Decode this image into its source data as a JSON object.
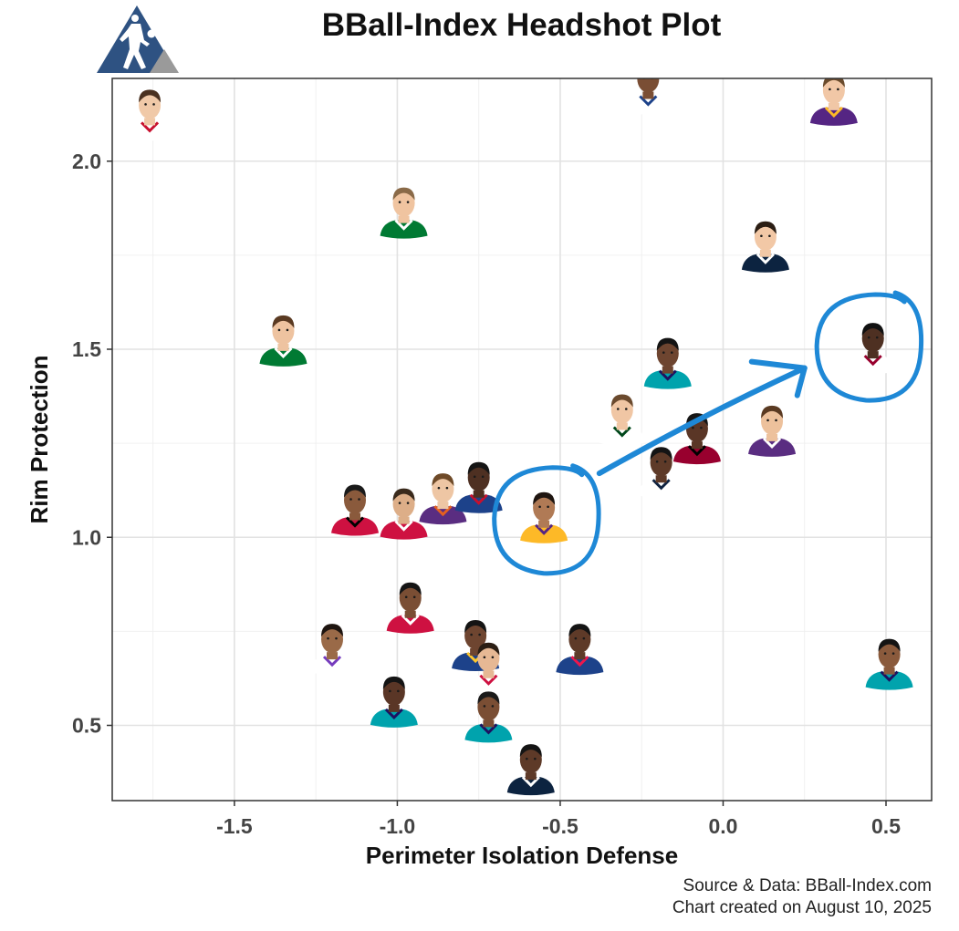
{
  "chart_data": {
    "type": "scatter",
    "title": "BBall-Index Headshot Plot",
    "xlabel": "Perimeter Isolation Defense",
    "ylabel": "Rim Protection",
    "xlim": [
      -1.875,
      0.64
    ],
    "ylim": [
      0.3,
      2.22
    ],
    "x_ticks": [
      -1.5,
      -1.0,
      -0.5,
      0.0,
      0.5
    ],
    "x_tick_labels": [
      "-1.5",
      "-1.0",
      "-0.5",
      "0.0",
      "0.5"
    ],
    "y_ticks": [
      0.5,
      1.0,
      1.5,
      2.0
    ],
    "y_tick_labels": [
      "0.5",
      "1.0",
      "1.5",
      "2.0"
    ],
    "grid": true,
    "marker": "player-headshot",
    "points": [
      {
        "x": -1.76,
        "y": 2.11,
        "jersey": "#ffffff",
        "trim": "#c8102e",
        "skin": "#f0c9a8",
        "hair": "#4a3120"
      },
      {
        "x": -0.23,
        "y": 2.18,
        "jersey": "#ffffff",
        "trim": "#1d428a",
        "skin": "#7a4e34",
        "hair": "#1a1a1a"
      },
      {
        "x": 0.34,
        "y": 2.15,
        "jersey": "#552583",
        "trim": "#fdb927",
        "skin": "#f1c7a6",
        "hair": "#6a4b2c"
      },
      {
        "x": -0.98,
        "y": 1.85,
        "jersey": "#007a33",
        "trim": "#ffffff",
        "skin": "#f0c4a0",
        "hair": "#8a6a48"
      },
      {
        "x": 0.13,
        "y": 1.76,
        "jersey": "#0c2340",
        "trim": "#ffffff",
        "skin": "#f2c8a6",
        "hair": "#2b1e14"
      },
      {
        "x": -1.35,
        "y": 1.51,
        "jersey": "#007a33",
        "trim": "#ffffff",
        "skin": "#eec3a0",
        "hair": "#5a3a22"
      },
      {
        "x": -0.17,
        "y": 1.45,
        "jersey": "#00a3ad",
        "trim": "#1d1160",
        "skin": "#6e4530",
        "hair": "#141414"
      },
      {
        "x": 0.46,
        "y": 1.49,
        "jersey": "#ffffff",
        "trim": "#98002e",
        "skin": "#4e3022",
        "hair": "#111111"
      },
      {
        "x": -0.31,
        "y": 1.3,
        "jersey": "#ffffff",
        "trim": "#00471b",
        "skin": "#f0c6a4",
        "hair": "#6b4a2e"
      },
      {
        "x": -0.08,
        "y": 1.25,
        "jersey": "#98002e",
        "trim": "#000000",
        "skin": "#5a3626",
        "hair": "#161616"
      },
      {
        "x": 0.15,
        "y": 1.27,
        "jersey": "#5a2d81",
        "trim": "#ffffff",
        "skin": "#edc19c",
        "hair": "#5a3a22"
      },
      {
        "x": -0.19,
        "y": 1.16,
        "jersey": "#ffffff",
        "trim": "#0e2240",
        "skin": "#5e3a28",
        "hair": "#141414"
      },
      {
        "x": -1.13,
        "y": 1.06,
        "jersey": "#ce1141",
        "trim": "#000000",
        "skin": "#8a5a3c",
        "hair": "#1a1a1a"
      },
      {
        "x": -0.98,
        "y": 1.05,
        "jersey": "#ce1141",
        "trim": "#ffffff",
        "skin": "#ddae88",
        "hair": "#3a2a1c"
      },
      {
        "x": -0.86,
        "y": 1.09,
        "jersey": "#5a2d81",
        "trim": "#e56020",
        "skin": "#eec6a4",
        "hair": "#6e4a28"
      },
      {
        "x": -0.75,
        "y": 1.12,
        "jersey": "#1d428a",
        "trim": "#c8102e",
        "skin": "#4e3022",
        "hair": "#151515"
      },
      {
        "x": -0.55,
        "y": 1.04,
        "jersey": "#fdb927",
        "trim": "#552583",
        "skin": "#b07a55",
        "hair": "#1e1510"
      },
      {
        "x": -0.96,
        "y": 0.8,
        "jersey": "#ce1141",
        "trim": "#ffffff",
        "skin": "#7a4e34",
        "hair": "#151515"
      },
      {
        "x": -1.2,
        "y": 0.69,
        "jersey": "#ffffff",
        "trim": "#753bbd",
        "skin": "#9a6a48",
        "hair": "#1e1510"
      },
      {
        "x": -0.76,
        "y": 0.7,
        "jersey": "#1d428a",
        "trim": "#ffc72c",
        "skin": "#6e4530",
        "hair": "#141414"
      },
      {
        "x": -0.72,
        "y": 0.64,
        "jersey": "#ffffff",
        "trim": "#ce1141",
        "skin": "#e6b894",
        "hair": "#2b1e14"
      },
      {
        "x": -0.44,
        "y": 0.69,
        "jersey": "#1d428a",
        "trim": "#ed174c",
        "skin": "#5e3a28",
        "hair": "#141414"
      },
      {
        "x": 0.51,
        "y": 0.65,
        "jersey": "#00a3ad",
        "trim": "#1d1160",
        "skin": "#8a5a3c",
        "hair": "#141414"
      },
      {
        "x": -1.01,
        "y": 0.55,
        "jersey": "#00a3ad",
        "trim": "#1d1160",
        "skin": "#5a3626",
        "hair": "#141414"
      },
      {
        "x": -0.72,
        "y": 0.51,
        "jersey": "#00a3ad",
        "trim": "#1d1160",
        "skin": "#7a4e34",
        "hair": "#1a1a1a"
      },
      {
        "x": -0.59,
        "y": 0.37,
        "jersey": "#0c2340",
        "trim": "#ffffff",
        "skin": "#5e3a28",
        "hair": "#141414"
      }
    ],
    "annotations": [
      {
        "type": "circle",
        "cx": -0.54,
        "cy": 1.04,
        "color": "#1e88d6"
      },
      {
        "type": "circle",
        "cx": 0.45,
        "cy": 1.5,
        "color": "#1e88d6"
      },
      {
        "type": "arrow",
        "from": [
          -0.38,
          1.17
        ],
        "to": [
          0.25,
          1.45
        ],
        "color": "#1e88d6"
      }
    ]
  },
  "logo": {
    "name": "bball-index-logo",
    "colors": [
      "#2e5282",
      "#9a9a9a"
    ]
  },
  "footer": {
    "source": "Source & Data: BBall-Index.com",
    "created": "Chart created on August 10, 2025"
  }
}
